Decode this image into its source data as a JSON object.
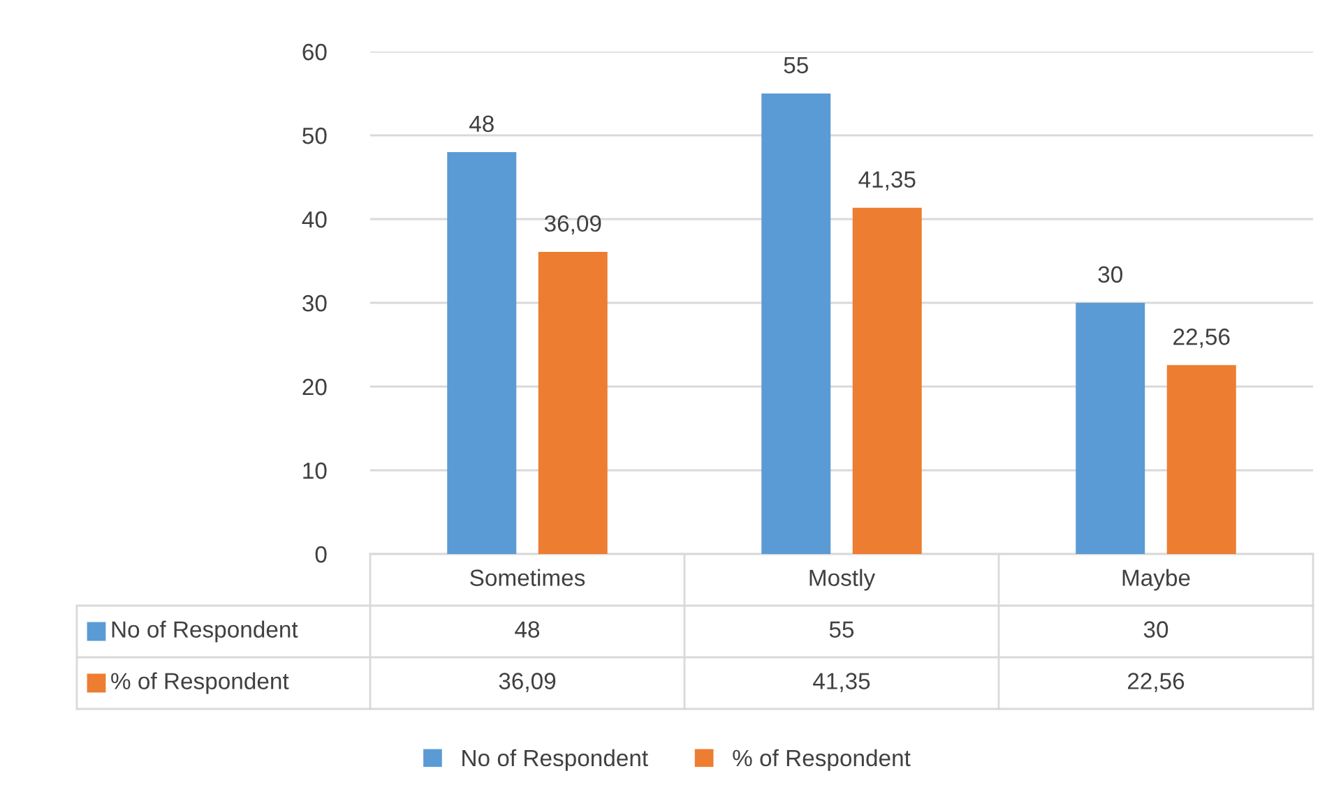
{
  "chart_data": {
    "type": "bar",
    "categories": [
      "Sometimes",
      "Mostly",
      "Maybe"
    ],
    "series": [
      {
        "name": "No of Respondent",
        "color": "#5b9bd5",
        "values": [
          48,
          55,
          30
        ],
        "value_labels": [
          "48",
          "55",
          "30"
        ]
      },
      {
        "name": "% of Respondent",
        "color": "#ed7d31",
        "values": [
          36.09,
          41.35,
          22.56
        ],
        "value_labels": [
          "36,09",
          "41,35",
          "22,56"
        ]
      }
    ],
    "ylim": [
      0,
      60
    ],
    "yticks": [
      0,
      10,
      20,
      30,
      40,
      50,
      60
    ],
    "grid": "y",
    "legend": "bottom"
  }
}
